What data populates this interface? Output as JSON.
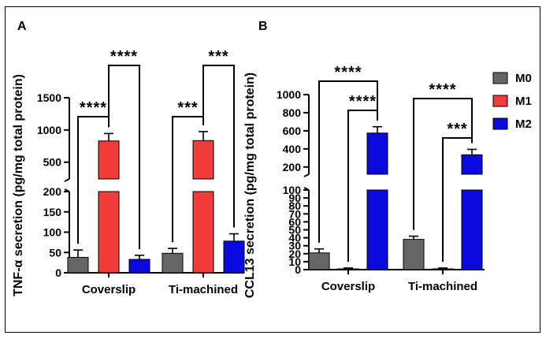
{
  "colors": {
    "M0": "#666666",
    "M1": "#f23c3c",
    "M2": "#0a0adf"
  },
  "legend": [
    {
      "name": "M0",
      "color": "#666666"
    },
    {
      "name": "M1",
      "color": "#f23c3c"
    },
    {
      "name": "M2",
      "color": "#0a0adf"
    }
  ],
  "chart_data": [
    {
      "panel": "A",
      "type": "bar",
      "ylabel": "TNF-α secretion (pg/mg total protein)",
      "categories": [
        "Coverslip",
        "Ti-machined"
      ],
      "series": [
        {
          "name": "M0",
          "values": [
            38,
            48
          ],
          "errors": [
            18,
            12
          ]
        },
        {
          "name": "M1",
          "values": [
            830,
            835
          ],
          "errors": [
            115,
            140
          ]
        },
        {
          "name": "M2",
          "values": [
            33,
            78
          ],
          "errors": [
            10,
            18
          ]
        }
      ],
      "y_segments": [
        {
          "range": [
            0,
            200
          ],
          "ticks": [
            0,
            50,
            100,
            150,
            200
          ]
        },
        {
          "range": [
            240,
            1500
          ],
          "ticks": [
            500,
            1000,
            1500
          ]
        }
      ],
      "significance": [
        {
          "category": "Coverslip",
          "from": "M0",
          "to": "M1",
          "label": "****"
        },
        {
          "category": "Coverslip",
          "from": "M1",
          "to": "M2",
          "label": "****"
        },
        {
          "category": "Ti-machined",
          "from": "M0",
          "to": "M1",
          "label": "***"
        },
        {
          "category": "Ti-machined",
          "from": "M1",
          "to": "M2",
          "label": "***"
        }
      ]
    },
    {
      "panel": "B",
      "type": "bar",
      "ylabel": "CCL13 secretion (pg/mg total protein)",
      "categories": [
        "Coverslip",
        "Ti-machined"
      ],
      "series": [
        {
          "name": "M0",
          "values": [
            21,
            38
          ],
          "errors": [
            5,
            4
          ]
        },
        {
          "name": "M1",
          "values": [
            1,
            1
          ],
          "errors": [
            1,
            1
          ]
        },
        {
          "name": "M2",
          "values": [
            575,
            335
          ],
          "errors": [
            70,
            60
          ]
        }
      ],
      "y_segments": [
        {
          "range": [
            0,
            100
          ],
          "ticks": [
            0,
            10,
            20,
            30,
            40,
            50,
            60,
            70,
            80,
            90,
            100
          ]
        },
        {
          "range": [
            120,
            1000
          ],
          "ticks": [
            200,
            400,
            600,
            800,
            1000
          ]
        }
      ],
      "significance": [
        {
          "category": "Coverslip",
          "from": "M0",
          "to": "M2",
          "label": "****"
        },
        {
          "category": "Coverslip",
          "from": "M1",
          "to": "M2",
          "label": "****"
        },
        {
          "category": "Ti-machined",
          "from": "M0",
          "to": "M2",
          "label": "****"
        },
        {
          "category": "Ti-machined",
          "from": "M1",
          "to": "M2",
          "label": "***"
        }
      ]
    }
  ]
}
